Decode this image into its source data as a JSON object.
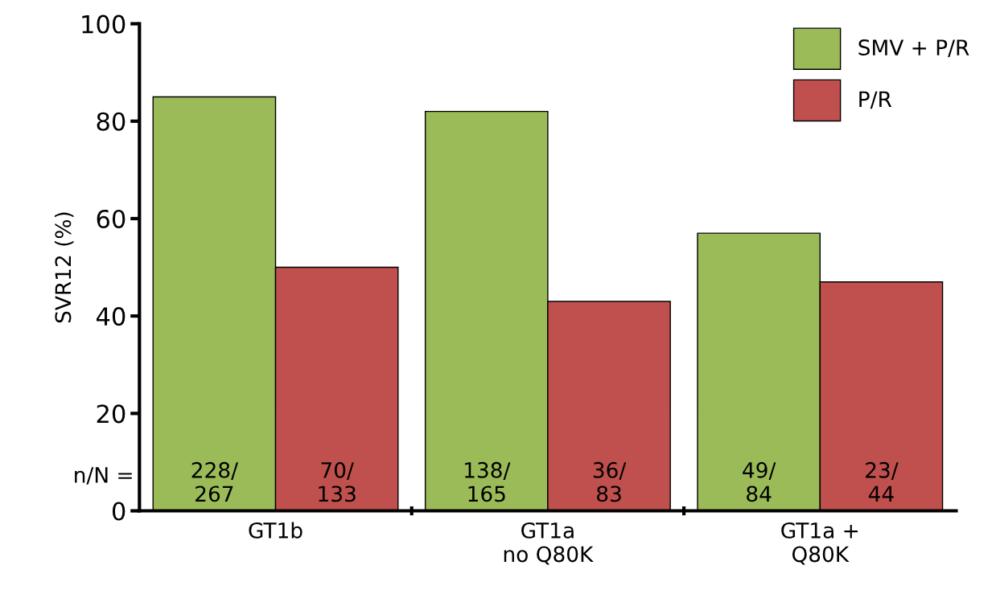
{
  "chart_data": {
    "type": "bar",
    "ylabel": "SVR12 (%)",
    "categories": [
      "GT1b",
      "GT1a\nno Q80K",
      "GT1a +\nQ80K"
    ],
    "series": [
      {
        "name": "SMV + P/R",
        "color": "#9bbb59",
        "values": [
          85,
          82,
          57
        ],
        "value_labels": [
          "228/\n267",
          "138/\n165",
          "49/\n84"
        ]
      },
      {
        "name": "P/R",
        "color": "#c0504d",
        "values": [
          50,
          43,
          47
        ],
        "value_labels": [
          "70/\n133",
          "36/\n83",
          "23/\n44"
        ]
      }
    ],
    "ylim": [
      0,
      100
    ],
    "yticks": [
      0,
      20,
      40,
      60,
      80,
      100
    ],
    "grid": false,
    "legend": "top right",
    "annotations": [
      "n/N ="
    ]
  }
}
